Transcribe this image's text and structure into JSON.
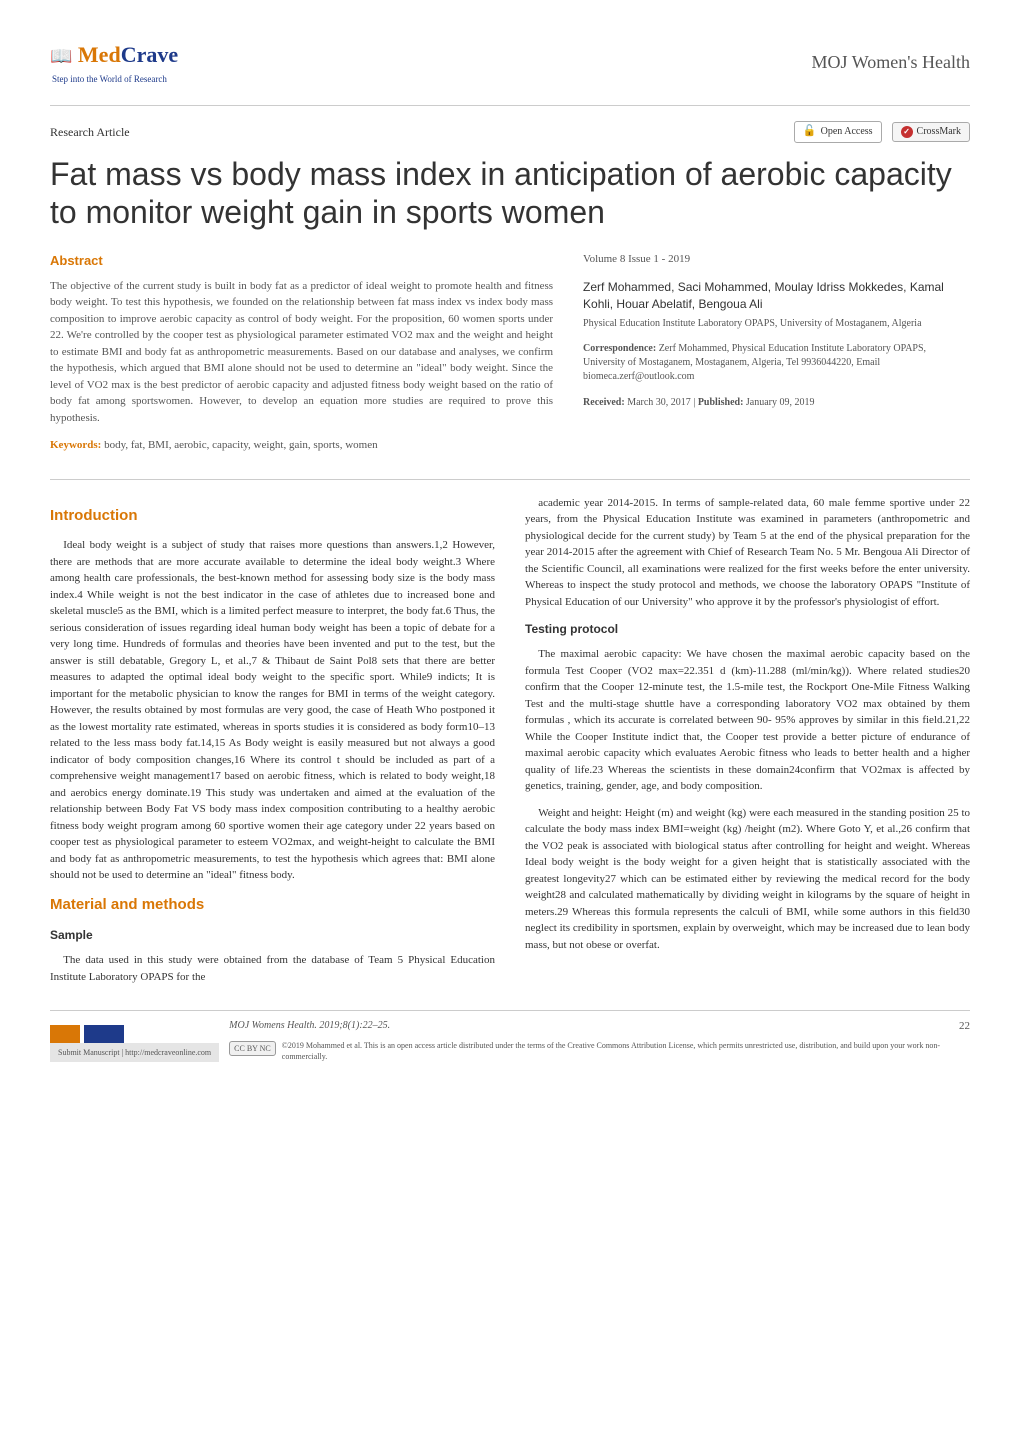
{
  "header": {
    "logo_prefix": "Med",
    "logo_suffix": "Crave",
    "logo_tagline": "Step into the World of Research",
    "journal": "MOJ Women's Health"
  },
  "article_type": "Research Article",
  "open_access_label": "Open Access",
  "crossmark_label": "CrossMark",
  "title": "Fat mass vs body mass index in anticipation of aerobic capacity to monitor weight gain in sports women",
  "abstract": {
    "heading": "Abstract",
    "text": "The objective of the current study is built in body fat as a predictor of ideal weight to promote health and fitness body weight. To test this hypothesis, we founded on the relationship between fat mass index vs index body mass composition to improve aerobic capacity as control of body weight. For the proposition, 60 women sports under 22. We're controlled by the cooper test as physiological parameter estimated VO2 max and the weight and height to estimate BMI and body fat as anthropometric measurements. Based on our database and analyses, we confirm the hypothesis, which argued that BMI alone should not be used to determine an \"ideal\" body weight. Since the level of VO2 max is the best predictor of aerobic capacity and adjusted fitness body weight based on the ratio of body fat among sportswomen. However, to develop an equation more studies are required to prove this hypothesis.",
    "keywords_label": "Keywords:",
    "keywords": "body, fat, BMI, aerobic, capacity, weight, gain, sports, women"
  },
  "meta": {
    "volume": "Volume 8 Issue 1 - 2019",
    "authors": "Zerf Mohammed, Saci Mohammed, Moulay Idriss Mokkedes, Kamal Kohli, Houar Abelatif, Bengoua Ali",
    "affiliation": "Physical Education Institute Laboratory OPAPS, University of Mostaganem, Algeria",
    "correspondence_label": "Correspondence:",
    "correspondence": "Zerf Mohammed, Physical Education Institute Laboratory OPAPS, University of Mostaganem, Mostaganem, Algeria, Tel 9936044220, Email biomeca.zerf@outlook.com",
    "received_label": "Received:",
    "received": "March 30, 2017",
    "published_label": "Published:",
    "published": "January 09, 2019"
  },
  "sections": {
    "introduction": {
      "heading": "Introduction",
      "p1": "Ideal body weight is a subject of study that raises more questions than answers.1,2 However, there are methods that are more accurate available to determine the ideal body weight.3 Where among health care professionals, the best-known method for assessing body size is the body mass index.4 While weight is not the best indicator in the case of athletes due to increased bone and skeletal muscle5 as the BMI, which is a limited perfect measure to interpret, the body fat.6 Thus, the serious consideration of issues regarding ideal human body weight has been a topic of debate for a very long time. Hundreds of formulas and theories have been invented and put to the test, but the answer is still debatable, Gregory L, et al.,7 & Thibaut de Saint Pol8 sets that there are better measures to adapted the optimal ideal body weight to the specific sport. While9 indicts; It is important for the metabolic physician to know the ranges for BMI in terms of the weight category. However, the results obtained by most formulas are very good, the case of Heath Who postponed it as the lowest mortality rate estimated, whereas in sports studies it is considered as body form10–13 related to the less mass body fat.14,15 As Body weight is easily measured but not always a good indicator of body composition changes,16 Where its control t should be included as part of a comprehensive weight management17 based on aerobic fitness, which is related to body weight,18 and aerobics energy dominate.19 This study was undertaken and aimed at the evaluation of the relationship between Body Fat VS body mass index composition contributing to a healthy aerobic fitness body weight program among 60 sportive women their age category under 22 years based on cooper test as physiological parameter to esteem VO2max, and weight-height to calculate the BMI and body fat as anthropometric measurements, to test the hypothesis which agrees that: BMI alone should not be used to determine an \"ideal\" fitness body."
    },
    "methods": {
      "heading": "Material and methods",
      "sample_heading": "Sample",
      "sample_p1": "The data used in this study were obtained from the database of Team 5 Physical Education Institute Laboratory OPAPS for the",
      "sample_p2": "academic year 2014-2015. In terms of sample-related data, 60 male femme sportive under 22 years, from the Physical Education Institute was examined in parameters (anthropometric and physiological decide for the current study) by Team 5 at the end of the physical preparation for the year 2014-2015 after the agreement with Chief of Research Team No. 5 Mr. Bengoua Ali Director of the Scientific Council, all examinations were realized for the first weeks before the enter university. Whereas to inspect the study protocol and methods, we choose the laboratory OPAPS \"Institute of Physical Education of our University\" who approve it by the professor's physiologist of effort.",
      "testing_heading": "Testing protocol",
      "testing_p1": "The maximal aerobic capacity: We have chosen the maximal aerobic capacity based on the formula Test Cooper (VO2 max=22.351 d (km)-11.288 (ml/min/kg)). Where related studies20 confirm that the Cooper 12-minute test, the 1.5-mile test, the Rockport One-Mile Fitness Walking Test and the multi-stage shuttle have a corresponding laboratory VO2 max obtained by them formulas , which its accurate is correlated between 90- 95% approves by similar in this field.21,22 While the Cooper Institute indict that, the Cooper test provide a better picture of endurance of maximal aerobic capacity which evaluates Aerobic fitness who leads to better health and a higher quality of life.23 Whereas the scientists in these domain24confirm that VO2max is affected by genetics, training, gender, age, and body composition.",
      "testing_p2": "Weight and height: Height (m) and weight (kg) were each measured in the standing position 25 to calculate the body mass index BMI=weight (kg) /height (m2). Where Goto Y, et al.,26 confirm that the VO2 peak is associated with biological status after controlling for height and weight. Whereas Ideal body weight is the body weight for a given height that is statistically associated with the greatest longevity27 which can be estimated either by reviewing the medical record for the body weight28 and calculated mathematically by dividing weight in kilograms by the square of height in meters.29 Whereas this formula represents the calculi of BMI, while some authors in this field30 neglect its credibility in sportsmen, explain by overweight, which may be increased due to lean body mass, but not obese or overfat."
    }
  },
  "footer": {
    "submit_label": "Submit Manuscript",
    "submit_url": "http://medcraveonline.com",
    "citation": "MOJ Womens Health. 2019;8(1):22–25.",
    "page_number": "22",
    "cc_label": "CC BY NC",
    "license_text": "©2019 Mohammed et al. This is an open access article distributed under the terms of the Creative Commons Attribution License, which permits unrestricted use, distribution, and build upon your work non-commercially."
  },
  "colors": {
    "accent": "#d97706",
    "brand_blue": "#1e3a8a",
    "text": "#333333",
    "muted": "#555555",
    "divider": "#cccccc"
  }
}
